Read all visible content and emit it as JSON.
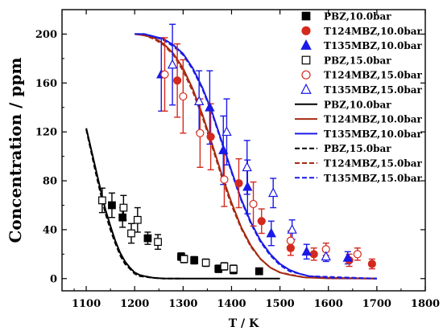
{
  "chart_data": {
    "type": "scatter",
    "title": "",
    "xlabel": "T / K",
    "ylabel": "Concentration / ppm",
    "xlim": [
      1050,
      1800
    ],
    "ylim": [
      -10,
      220
    ],
    "xticks": [
      1100,
      1200,
      1300,
      1400,
      1500,
      1600,
      1700,
      1800
    ],
    "yticks": [
      0,
      40,
      80,
      120,
      160,
      200
    ],
    "grid": false,
    "legend_position": "top-right",
    "series": [
      {
        "name": "PBZ,10.0bar",
        "kind": "marker",
        "shape": "square",
        "fill": "filled",
        "color": "#000000",
        "points": [
          [
            1153,
            60,
            10
          ],
          [
            1175,
            50,
            8
          ],
          [
            1227,
            33,
            5
          ],
          [
            1296,
            18,
            3
          ],
          [
            1323,
            15,
            3
          ],
          [
            1373,
            8,
            3
          ],
          [
            1404,
            7,
            3
          ],
          [
            1457,
            6,
            2
          ]
        ]
      },
      {
        "name": "T124MBZ,10.0bar",
        "kind": "marker",
        "shape": "circle",
        "fill": "filled",
        "color": "#d42a1e",
        "points": [
          [
            1288,
            162,
            30
          ],
          [
            1357,
            116,
            27
          ],
          [
            1415,
            78,
            20
          ],
          [
            1462,
            47,
            10
          ],
          [
            1522,
            25,
            6
          ],
          [
            1570,
            20,
            5
          ],
          [
            1643,
            15,
            5
          ],
          [
            1690,
            12,
            4
          ]
        ]
      },
      {
        "name": "T135MBZ,10.0bar",
        "kind": "marker",
        "shape": "triangle",
        "fill": "filled",
        "color": "#1a1ae6",
        "points": [
          [
            1255,
            167,
            30
          ],
          [
            1355,
            140,
            30
          ],
          [
            1383,
            105,
            28
          ],
          [
            1433,
            75,
            22
          ],
          [
            1482,
            37,
            10
          ],
          [
            1555,
            22,
            6
          ],
          [
            1640,
            17,
            5
          ]
        ]
      },
      {
        "name": "PBZ,15.0bar",
        "kind": "marker",
        "shape": "square",
        "fill": "open",
        "color": "#000000",
        "points": [
          [
            1133,
            64,
            10
          ],
          [
            1177,
            58,
            10
          ],
          [
            1193,
            37,
            8
          ],
          [
            1206,
            48,
            10
          ],
          [
            1248,
            30,
            6
          ],
          [
            1302,
            16,
            3
          ],
          [
            1347,
            13,
            3
          ],
          [
            1385,
            10,
            3
          ],
          [
            1404,
            8,
            3
          ]
        ]
      },
      {
        "name": "T124MBZ,15.0bar",
        "kind": "marker",
        "shape": "circle",
        "fill": "open",
        "color": "#d42a1e",
        "points": [
          [
            1262,
            167,
            30
          ],
          [
            1300,
            149,
            30
          ],
          [
            1335,
            119,
            28
          ],
          [
            1385,
            81,
            22
          ],
          [
            1445,
            61,
            18
          ],
          [
            1522,
            31,
            8
          ],
          [
            1595,
            24,
            5
          ],
          [
            1660,
            20,
            5
          ]
        ]
      },
      {
        "name": "T135MBZ,15.0bar",
        "kind": "marker",
        "shape": "triangle",
        "fill": "open",
        "color": "#1a1ae6",
        "points": [
          [
            1278,
            175,
            33
          ],
          [
            1333,
            145,
            25
          ],
          [
            1390,
            120,
            27
          ],
          [
            1432,
            91,
            22
          ],
          [
            1486,
            70,
            12
          ],
          [
            1525,
            40,
            8
          ],
          [
            1595,
            18,
            4
          ]
        ]
      },
      {
        "name": "PBZ,10.0bar",
        "kind": "line",
        "dash": "solid",
        "color": "#000000",
        "points": [
          [
            1100,
            123
          ],
          [
            1110,
            106
          ],
          [
            1120,
            89
          ],
          [
            1130,
            72
          ],
          [
            1140,
            56
          ],
          [
            1150,
            43
          ],
          [
            1160,
            31
          ],
          [
            1170,
            21
          ],
          [
            1180,
            14
          ],
          [
            1190,
            9
          ],
          [
            1200,
            5
          ],
          [
            1210,
            3
          ],
          [
            1220,
            2
          ],
          [
            1240,
            0.5
          ],
          [
            1260,
            0.1
          ],
          [
            1300,
            0
          ],
          [
            1500,
            0
          ]
        ]
      },
      {
        "name": "T124MBZ,10.0bar",
        "kind": "line",
        "dash": "solid",
        "color": "#a52a10",
        "points": [
          [
            1200,
            200
          ],
          [
            1220,
            199
          ],
          [
            1240,
            197
          ],
          [
            1260,
            192
          ],
          [
            1280,
            184
          ],
          [
            1300,
            172
          ],
          [
            1320,
            155
          ],
          [
            1340,
            134
          ],
          [
            1360,
            110
          ],
          [
            1380,
            85
          ],
          [
            1400,
            62
          ],
          [
            1420,
            42
          ],
          [
            1440,
            27
          ],
          [
            1460,
            16
          ],
          [
            1480,
            9
          ],
          [
            1500,
            5
          ],
          [
            1520,
            3
          ],
          [
            1550,
            1
          ],
          [
            1600,
            0.2
          ],
          [
            1700,
            0
          ]
        ]
      },
      {
        "name": "T135MBZ,10.0bar",
        "kind": "line",
        "dash": "solid",
        "color": "#1a1ae6",
        "points": [
          [
            1200,
            200
          ],
          [
            1220,
            200
          ],
          [
            1240,
            198
          ],
          [
            1260,
            196
          ],
          [
            1280,
            191
          ],
          [
            1300,
            184
          ],
          [
            1320,
            172
          ],
          [
            1340,
            156
          ],
          [
            1360,
            136
          ],
          [
            1380,
            112
          ],
          [
            1400,
            88
          ],
          [
            1420,
            65
          ],
          [
            1440,
            46
          ],
          [
            1460,
            31
          ],
          [
            1480,
            20
          ],
          [
            1500,
            12
          ],
          [
            1520,
            7
          ],
          [
            1540,
            4
          ],
          [
            1560,
            2
          ],
          [
            1600,
            0.5
          ],
          [
            1700,
            0
          ]
        ]
      },
      {
        "name": "PBZ,15.0bar",
        "kind": "line",
        "dash": "dashed",
        "color": "#000000",
        "points": [
          [
            1100,
            122
          ],
          [
            1110,
            104
          ],
          [
            1120,
            86
          ],
          [
            1130,
            69
          ],
          [
            1140,
            53
          ],
          [
            1150,
            40
          ],
          [
            1160,
            29
          ],
          [
            1170,
            19
          ],
          [
            1180,
            12
          ],
          [
            1190,
            8
          ],
          [
            1200,
            4
          ],
          [
            1210,
            2
          ],
          [
            1230,
            1
          ],
          [
            1260,
            0
          ],
          [
            1300,
            0
          ]
        ]
      },
      {
        "name": "T124MBZ,15.0bar",
        "kind": "line",
        "dash": "dashed",
        "color": "#a52a10",
        "points": [
          [
            1200,
            200
          ],
          [
            1220,
            199
          ],
          [
            1240,
            196
          ],
          [
            1260,
            191
          ],
          [
            1280,
            183
          ],
          [
            1300,
            170
          ],
          [
            1320,
            153
          ],
          [
            1340,
            132
          ],
          [
            1360,
            108
          ],
          [
            1380,
            83
          ],
          [
            1400,
            60
          ],
          [
            1420,
            41
          ],
          [
            1440,
            26
          ],
          [
            1460,
            16
          ],
          [
            1480,
            9
          ],
          [
            1500,
            5
          ],
          [
            1550,
            1
          ],
          [
            1700,
            0
          ]
        ]
      },
      {
        "name": "T135MBZ,15.0bar",
        "kind": "line",
        "dash": "dashed",
        "color": "#1a1ae6",
        "points": [
          [
            1200,
            200
          ],
          [
            1220,
            200
          ],
          [
            1240,
            198
          ],
          [
            1260,
            195
          ],
          [
            1280,
            190
          ],
          [
            1300,
            183
          ],
          [
            1320,
            171
          ],
          [
            1340,
            155
          ],
          [
            1360,
            135
          ],
          [
            1380,
            111
          ],
          [
            1400,
            87
          ],
          [
            1420,
            64
          ],
          [
            1440,
            45
          ],
          [
            1460,
            30
          ],
          [
            1480,
            19
          ],
          [
            1500,
            11
          ],
          [
            1520,
            6
          ],
          [
            1560,
            2
          ],
          [
            1700,
            0
          ]
        ]
      }
    ]
  }
}
